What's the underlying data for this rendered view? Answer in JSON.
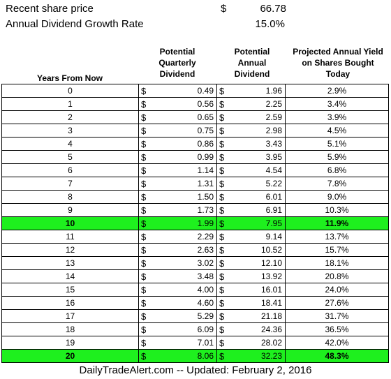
{
  "summary": {
    "share_price_label": "Recent share price",
    "share_price_currency": "$",
    "share_price_value": "66.78",
    "growth_label": "Annual Dividend Growth Rate",
    "growth_value": "15.0%"
  },
  "columns": {
    "years": "Years From Now",
    "quarterly": [
      "Potential",
      "Quarterly",
      "Dividend"
    ],
    "annual": [
      "Potential",
      "Annual",
      "Dividend"
    ],
    "yield": [
      "Projected Annual Yield",
      "on Shares Bought",
      "Today"
    ]
  },
  "currency_symbol": "$",
  "highlight_color": "#1ef01e",
  "rows": [
    {
      "year": "0",
      "quarterly": "0.49",
      "annual": "1.96",
      "yield": "2.9%",
      "highlight": false
    },
    {
      "year": "1",
      "quarterly": "0.56",
      "annual": "2.25",
      "yield": "3.4%",
      "highlight": false
    },
    {
      "year": "2",
      "quarterly": "0.65",
      "annual": "2.59",
      "yield": "3.9%",
      "highlight": false
    },
    {
      "year": "3",
      "quarterly": "0.75",
      "annual": "2.98",
      "yield": "4.5%",
      "highlight": false
    },
    {
      "year": "4",
      "quarterly": "0.86",
      "annual": "3.43",
      "yield": "5.1%",
      "highlight": false
    },
    {
      "year": "5",
      "quarterly": "0.99",
      "annual": "3.95",
      "yield": "5.9%",
      "highlight": false
    },
    {
      "year": "6",
      "quarterly": "1.14",
      "annual": "4.54",
      "yield": "6.8%",
      "highlight": false
    },
    {
      "year": "7",
      "quarterly": "1.31",
      "annual": "5.22",
      "yield": "7.8%",
      "highlight": false
    },
    {
      "year": "8",
      "quarterly": "1.50",
      "annual": "6.01",
      "yield": "9.0%",
      "highlight": false
    },
    {
      "year": "9",
      "quarterly": "1.73",
      "annual": "6.91",
      "yield": "10.3%",
      "highlight": false
    },
    {
      "year": "10",
      "quarterly": "1.99",
      "annual": "7.95",
      "yield": "11.9%",
      "highlight": true
    },
    {
      "year": "11",
      "quarterly": "2.29",
      "annual": "9.14",
      "yield": "13.7%",
      "highlight": false
    },
    {
      "year": "12",
      "quarterly": "2.63",
      "annual": "10.52",
      "yield": "15.7%",
      "highlight": false
    },
    {
      "year": "13",
      "quarterly": "3.02",
      "annual": "12.10",
      "yield": "18.1%",
      "highlight": false
    },
    {
      "year": "14",
      "quarterly": "3.48",
      "annual": "13.92",
      "yield": "20.8%",
      "highlight": false
    },
    {
      "year": "15",
      "quarterly": "4.00",
      "annual": "16.01",
      "yield": "24.0%",
      "highlight": false
    },
    {
      "year": "16",
      "quarterly": "4.60",
      "annual": "18.41",
      "yield": "27.6%",
      "highlight": false
    },
    {
      "year": "17",
      "quarterly": "5.29",
      "annual": "21.18",
      "yield": "31.7%",
      "highlight": false
    },
    {
      "year": "18",
      "quarterly": "6.09",
      "annual": "24.36",
      "yield": "36.5%",
      "highlight": false
    },
    {
      "year": "19",
      "quarterly": "7.01",
      "annual": "28.02",
      "yield": "42.0%",
      "highlight": false
    },
    {
      "year": "20",
      "quarterly": "8.06",
      "annual": "32.23",
      "yield": "48.3%",
      "highlight": true
    }
  ],
  "footer": "DailyTradeAlert.com -- Updated: February 2, 2016"
}
